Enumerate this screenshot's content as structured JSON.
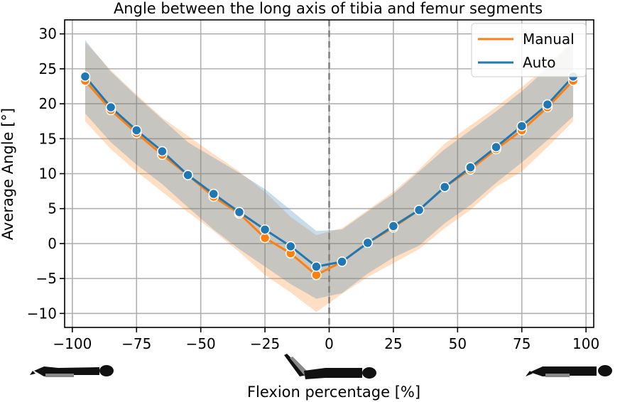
{
  "chart_data": {
    "type": "line",
    "title": "Angle between the long axis of tibia and femur segments",
    "xlabel": "Flexion percentage [%]",
    "ylabel": "Average Angle [°]",
    "xlim": [
      -103,
      103
    ],
    "ylim": [
      -12,
      32
    ],
    "x_ticks": [
      -100,
      -75,
      -50,
      -25,
      0,
      25,
      50,
      75,
      100
    ],
    "x_tick_labels": [
      "−100",
      "−75",
      "−50",
      "−25",
      "0",
      "25",
      "50",
      "75",
      "100"
    ],
    "y_ticks": [
      -10,
      -5,
      0,
      5,
      10,
      15,
      20,
      25,
      30
    ],
    "y_tick_labels": [
      "−10",
      "−5",
      "0",
      "5",
      "10",
      "15",
      "20",
      "25",
      "30"
    ],
    "grid": true,
    "legend_position": "top-right",
    "vertical_reference_line": 0,
    "x": [
      -95,
      -85,
      -75,
      -65,
      -55,
      -45,
      -35,
      -25,
      -15,
      -5,
      5,
      15,
      25,
      35,
      45,
      55,
      65,
      75,
      85,
      95
    ],
    "series": [
      {
        "name": "Manual",
        "color": "#ff7f0e",
        "values": [
          23.3,
          19.1,
          15.8,
          12.7,
          9.8,
          6.7,
          4.3,
          0.8,
          -1.4,
          -4.5,
          -2.6,
          0.1,
          2.3,
          4.8,
          8.1,
          10.6,
          13.5,
          16.2,
          19.5,
          23.3
        ],
        "band_upper": [
          28.8,
          24.8,
          21.3,
          18.0,
          15.4,
          12.8,
          10.3,
          7.4,
          3.8,
          1.2,
          2.2,
          4.8,
          7.4,
          10.6,
          14.3,
          16.9,
          19.5,
          22.4,
          25.4,
          29.1
        ],
        "band_lower": [
          17.5,
          13.5,
          10.3,
          7.4,
          4.5,
          1.8,
          -1.2,
          -4.5,
          -7.0,
          -9.8,
          -7.2,
          -4.8,
          -2.8,
          -0.8,
          2.2,
          4.8,
          8.1,
          10.3,
          13.8,
          17.5
        ]
      },
      {
        "name": "Auto",
        "color": "#1f77b4",
        "values": [
          23.9,
          19.5,
          16.2,
          13.2,
          9.8,
          7.1,
          4.5,
          2.0,
          -0.4,
          -3.3,
          -2.6,
          0.1,
          2.5,
          4.8,
          8.1,
          10.9,
          13.8,
          16.8,
          19.9,
          23.9
        ],
        "band_upper": [
          29.1,
          24.6,
          21.1,
          17.8,
          14.5,
          12.3,
          10.1,
          7.8,
          4.8,
          1.8,
          2.0,
          4.6,
          7.1,
          10.3,
          13.5,
          16.2,
          18.9,
          21.8,
          25.1,
          28.8
        ],
        "band_lower": [
          18.6,
          14.5,
          11.3,
          8.5,
          5.2,
          2.0,
          -0.8,
          -3.3,
          -5.8,
          -7.9,
          -7.1,
          -4.3,
          -2.0,
          -0.3,
          2.9,
          5.5,
          8.7,
          11.6,
          14.8,
          18.2
        ]
      }
    ]
  },
  "icons": [
    "lying-figure-flat-icon",
    "lying-figure-legs-raised-icon",
    "lying-figure-flat-icon"
  ]
}
